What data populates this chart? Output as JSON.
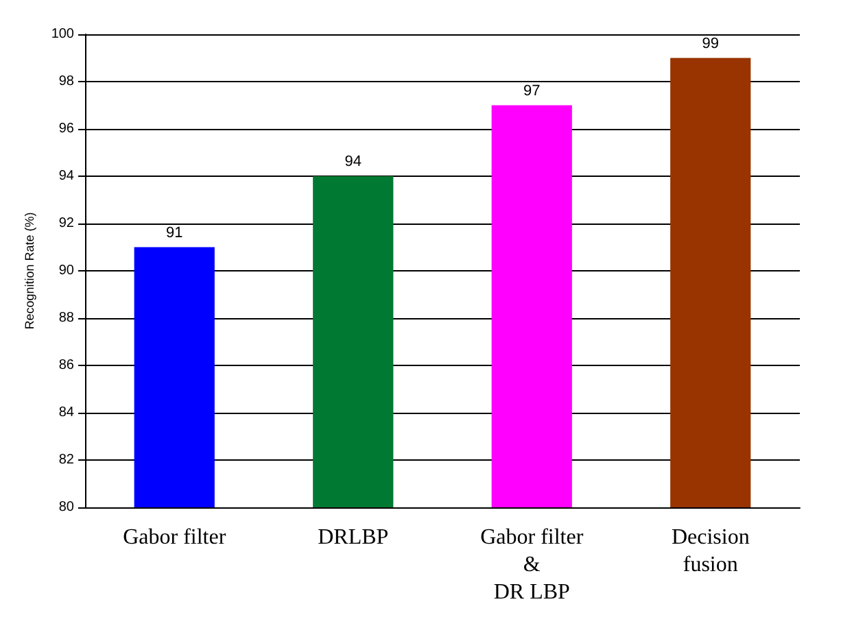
{
  "chart_data": {
    "type": "bar",
    "ylabel": "Recognition Rate (%)",
    "categories": [
      "Gabor filter",
      "DRLBP",
      "Gabor filter\n&\nDR LBP",
      "Decision\nfusion"
    ],
    "values": [
      91,
      94,
      97,
      99
    ],
    "colors": [
      "#0000ff",
      "#007a33",
      "#ff00ff",
      "#993300"
    ],
    "ylim": [
      80,
      100
    ],
    "yticks": [
      80,
      82,
      84,
      86,
      88,
      90,
      92,
      94,
      96,
      98,
      100
    ],
    "grid": "y",
    "data_labels": true
  }
}
